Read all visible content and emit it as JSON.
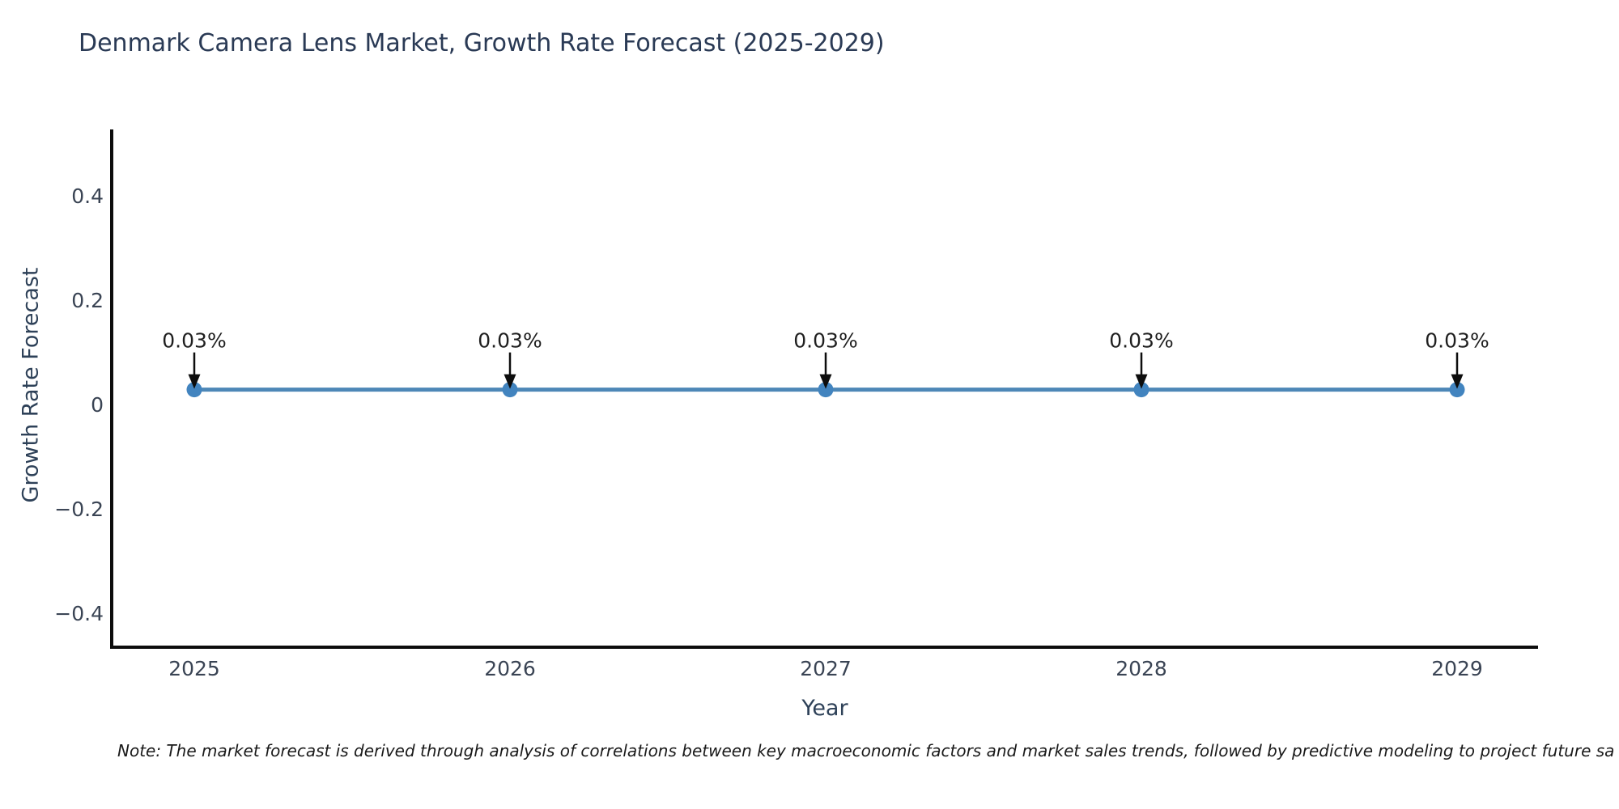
{
  "title": "Denmark Camera Lens Market, Growth Rate Forecast (2025-2029)",
  "note": "Note: The market forecast is derived through analysis of correlations between key macroeconomic factors and market sales trends, followed by predictive modeling to project future sa",
  "chart_data": {
    "type": "line",
    "title": "Denmark Camera Lens Market, Growth Rate Forecast (2025-2029)",
    "xlabel": "Year",
    "ylabel": "Growth Rate Forecast",
    "categories": [
      "2025",
      "2026",
      "2027",
      "2028",
      "2029"
    ],
    "series": [
      {
        "name": "Growth Rate Forecast",
        "values": [
          0.03,
          0.03,
          0.03,
          0.03,
          0.03
        ]
      }
    ],
    "point_labels": [
      "0.03%",
      "0.03%",
      "0.03%",
      "0.03%",
      "0.03%"
    ],
    "yticks": [
      0.4,
      0.2,
      0,
      -0.2,
      -0.4
    ],
    "ytick_labels": [
      "0.4",
      "0.2",
      "0",
      "−0.2",
      "−0.4"
    ],
    "ylim": [
      -0.46,
      0.53
    ],
    "grid": false,
    "legend": false,
    "colors": {
      "line": "#4d87b7",
      "marker": "#4284bf",
      "annotation": "#1f1f1f",
      "arrow": "#0d0d0d",
      "spine": "#0d0d0d",
      "title": "#2a3a55",
      "axis_label": "#2e4158",
      "tick_label": "#3a4454"
    }
  }
}
